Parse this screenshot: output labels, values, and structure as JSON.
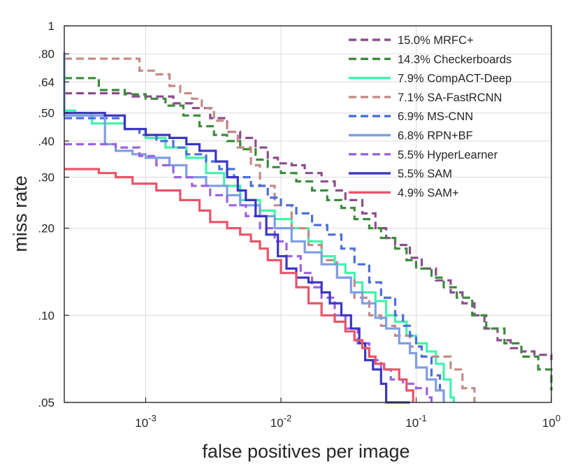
{
  "chart_data": {
    "type": "line",
    "title": "",
    "xlabel": "false positives per image",
    "ylabel": "miss rate",
    "xscale": "log",
    "yscale": "log",
    "xlim": [
      0.00025,
      1
    ],
    "ylim": [
      0.05,
      1
    ],
    "grid": true,
    "legend_position": "top-right",
    "y_ticks": [
      {
        "value": 0.05,
        "label": ".05"
      },
      {
        "value": 0.1,
        "label": ".10"
      },
      {
        "value": 0.2,
        "label": ".20"
      },
      {
        "value": 0.3,
        "label": ".30"
      },
      {
        "value": 0.4,
        "label": ".40"
      },
      {
        "value": 0.5,
        "label": ".50"
      },
      {
        "value": 0.64,
        "label": ".64"
      },
      {
        "value": 0.8,
        "label": ".80"
      },
      {
        "value": 1.0,
        "label": "1"
      }
    ],
    "x_ticks": [
      {
        "value": 0.001,
        "base": "10",
        "exp": "-3"
      },
      {
        "value": 0.01,
        "base": "10",
        "exp": "-2"
      },
      {
        "value": 0.1,
        "base": "10",
        "exp": "-1"
      },
      {
        "value": 1,
        "base": "10",
        "exp": "0"
      }
    ],
    "series": [
      {
        "name": "15.0% MRFC+",
        "color": "#8b4e8c",
        "dashed": true,
        "points": [
          [
            0.00025,
            0.585
          ],
          [
            0.0006,
            0.585
          ],
          [
            0.0008,
            0.57
          ],
          [
            0.0012,
            0.57
          ],
          [
            0.0016,
            0.54
          ],
          [
            0.0022,
            0.52
          ],
          [
            0.003,
            0.48
          ],
          [
            0.004,
            0.43
          ],
          [
            0.005,
            0.41
          ],
          [
            0.0065,
            0.38
          ],
          [
            0.008,
            0.35
          ],
          [
            0.0095,
            0.335
          ],
          [
            0.012,
            0.33
          ],
          [
            0.015,
            0.31
          ],
          [
            0.02,
            0.29
          ],
          [
            0.025,
            0.27
          ],
          [
            0.03,
            0.25
          ],
          [
            0.04,
            0.225
          ],
          [
            0.05,
            0.2
          ],
          [
            0.06,
            0.185
          ],
          [
            0.07,
            0.175
          ],
          [
            0.09,
            0.158
          ],
          [
            0.11,
            0.145
          ],
          [
            0.14,
            0.132
          ],
          [
            0.18,
            0.12
          ],
          [
            0.22,
            0.11
          ],
          [
            0.27,
            0.1
          ],
          [
            0.32,
            0.09
          ],
          [
            0.4,
            0.082
          ],
          [
            0.5,
            0.077
          ],
          [
            0.6,
            0.075
          ],
          [
            0.75,
            0.073
          ],
          [
            1.0,
            0.07
          ]
        ]
      },
      {
        "name": "14.3% Checkerboards",
        "color": "#3d8a3d",
        "dashed": true,
        "points": [
          [
            0.00025,
            0.66
          ],
          [
            0.00035,
            0.66
          ],
          [
            0.00045,
            0.6
          ],
          [
            0.0007,
            0.58
          ],
          [
            0.001,
            0.56
          ],
          [
            0.0014,
            0.53
          ],
          [
            0.0019,
            0.49
          ],
          [
            0.0025,
            0.45
          ],
          [
            0.0032,
            0.42
          ],
          [
            0.004,
            0.4
          ],
          [
            0.005,
            0.375
          ],
          [
            0.0065,
            0.345
          ],
          [
            0.008,
            0.325
          ],
          [
            0.01,
            0.31
          ],
          [
            0.013,
            0.29
          ],
          [
            0.017,
            0.27
          ],
          [
            0.022,
            0.25
          ],
          [
            0.028,
            0.235
          ],
          [
            0.035,
            0.215
          ],
          [
            0.045,
            0.2
          ],
          [
            0.055,
            0.185
          ],
          [
            0.07,
            0.17
          ],
          [
            0.085,
            0.155
          ],
          [
            0.1,
            0.145
          ],
          [
            0.13,
            0.135
          ],
          [
            0.16,
            0.125
          ],
          [
            0.2,
            0.115
          ],
          [
            0.26,
            0.1
          ],
          [
            0.33,
            0.09
          ],
          [
            0.45,
            0.08
          ],
          [
            0.6,
            0.072
          ],
          [
            0.8,
            0.065
          ],
          [
            1.0,
            0.055
          ]
        ]
      },
      {
        "name": "7.9% CompACT-Deep",
        "color": "#3ff5a9",
        "dashed": false,
        "points": [
          [
            0.00025,
            0.51
          ],
          [
            0.0003,
            0.5
          ],
          [
            0.0004,
            0.46
          ],
          [
            0.0007,
            0.44
          ],
          [
            0.001,
            0.41
          ],
          [
            0.0014,
            0.38
          ],
          [
            0.002,
            0.35
          ],
          [
            0.0028,
            0.31
          ],
          [
            0.0038,
            0.28
          ],
          [
            0.005,
            0.25
          ],
          [
            0.007,
            0.23
          ],
          [
            0.009,
            0.215
          ],
          [
            0.012,
            0.2
          ],
          [
            0.016,
            0.18
          ],
          [
            0.02,
            0.16
          ],
          [
            0.025,
            0.15
          ],
          [
            0.03,
            0.14
          ],
          [
            0.035,
            0.13
          ],
          [
            0.04,
            0.12
          ],
          [
            0.05,
            0.112
          ],
          [
            0.06,
            0.1
          ],
          [
            0.07,
            0.095
          ],
          [
            0.085,
            0.085
          ],
          [
            0.1,
            0.08
          ],
          [
            0.12,
            0.075
          ],
          [
            0.14,
            0.068
          ],
          [
            0.16,
            0.06
          ],
          [
            0.18,
            0.052
          ],
          [
            0.19,
            0.05
          ]
        ]
      },
      {
        "name": "7.1% SA-FastRCNN",
        "color": "#c48a88",
        "dashed": true,
        "points": [
          [
            0.00025,
            0.77
          ],
          [
            0.0008,
            0.77
          ],
          [
            0.0009,
            0.7
          ],
          [
            0.0012,
            0.68
          ],
          [
            0.0015,
            0.62
          ],
          [
            0.0018,
            0.585
          ],
          [
            0.0022,
            0.56
          ],
          [
            0.0026,
            0.52
          ],
          [
            0.0032,
            0.47
          ],
          [
            0.004,
            0.43
          ],
          [
            0.0048,
            0.38
          ],
          [
            0.006,
            0.33
          ],
          [
            0.007,
            0.28
          ],
          [
            0.009,
            0.24
          ],
          [
            0.012,
            0.2
          ],
          [
            0.016,
            0.175
          ],
          [
            0.02,
            0.155
          ],
          [
            0.026,
            0.135
          ],
          [
            0.035,
            0.115
          ],
          [
            0.045,
            0.1
          ],
          [
            0.055,
            0.092
          ],
          [
            0.07,
            0.085
          ],
          [
            0.09,
            0.078
          ],
          [
            0.11,
            0.072
          ],
          [
            0.14,
            0.072
          ],
          [
            0.18,
            0.065
          ],
          [
            0.22,
            0.056
          ],
          [
            0.27,
            0.05
          ]
        ]
      },
      {
        "name": "6.9% MS-CNN",
        "color": "#4a6fd8",
        "dashed": true,
        "points": [
          [
            0.00025,
            0.48
          ],
          [
            0.0005,
            0.48
          ],
          [
            0.0007,
            0.44
          ],
          [
            0.0009,
            0.42
          ],
          [
            0.0012,
            0.4
          ],
          [
            0.0016,
            0.38
          ],
          [
            0.002,
            0.36
          ],
          [
            0.0028,
            0.34
          ],
          [
            0.0035,
            0.32
          ],
          [
            0.0045,
            0.3
          ],
          [
            0.006,
            0.28
          ],
          [
            0.008,
            0.255
          ],
          [
            0.01,
            0.24
          ],
          [
            0.013,
            0.225
          ],
          [
            0.017,
            0.205
          ],
          [
            0.022,
            0.19
          ],
          [
            0.028,
            0.17
          ],
          [
            0.035,
            0.15
          ],
          [
            0.045,
            0.13
          ],
          [
            0.055,
            0.115
          ],
          [
            0.07,
            0.1
          ],
          [
            0.08,
            0.092
          ],
          [
            0.09,
            0.085
          ],
          [
            0.1,
            0.078
          ],
          [
            0.11,
            0.072
          ],
          [
            0.13,
            0.062
          ],
          [
            0.15,
            0.055
          ],
          [
            0.16,
            0.05
          ]
        ]
      },
      {
        "name": "6.8% RPN+BF",
        "color": "#7f9ee3",
        "dashed": false,
        "points": [
          [
            0.00025,
            0.81
          ],
          [
            0.00025,
            0.49
          ],
          [
            0.0005,
            0.46
          ],
          [
            0.0005,
            0.39
          ],
          [
            0.0006,
            0.37
          ],
          [
            0.0008,
            0.36
          ],
          [
            0.001,
            0.35
          ],
          [
            0.0015,
            0.33
          ],
          [
            0.002,
            0.3
          ],
          [
            0.0028,
            0.28
          ],
          [
            0.004,
            0.26
          ],
          [
            0.005,
            0.24
          ],
          [
            0.007,
            0.22
          ],
          [
            0.009,
            0.2
          ],
          [
            0.012,
            0.18
          ],
          [
            0.015,
            0.165
          ],
          [
            0.02,
            0.15
          ],
          [
            0.026,
            0.135
          ],
          [
            0.033,
            0.12
          ],
          [
            0.04,
            0.11
          ],
          [
            0.05,
            0.098
          ],
          [
            0.06,
            0.09
          ],
          [
            0.075,
            0.08
          ],
          [
            0.09,
            0.074
          ],
          [
            0.1,
            0.066
          ],
          [
            0.12,
            0.06
          ],
          [
            0.14,
            0.055
          ],
          [
            0.16,
            0.05
          ]
        ]
      },
      {
        "name": "5.5% HyperLearner",
        "color": "#9b63e0",
        "dashed": true,
        "points": [
          [
            0.00025,
            0.39
          ],
          [
            0.0006,
            0.38
          ],
          [
            0.0009,
            0.355
          ],
          [
            0.0012,
            0.33
          ],
          [
            0.0016,
            0.3
          ],
          [
            0.0022,
            0.28
          ],
          [
            0.003,
            0.26
          ],
          [
            0.004,
            0.24
          ],
          [
            0.0055,
            0.22
          ],
          [
            0.007,
            0.2
          ],
          [
            0.009,
            0.18
          ],
          [
            0.011,
            0.16
          ],
          [
            0.014,
            0.14
          ],
          [
            0.017,
            0.125
          ],
          [
            0.02,
            0.115
          ],
          [
            0.025,
            0.1
          ],
          [
            0.03,
            0.09
          ],
          [
            0.037,
            0.08
          ],
          [
            0.045,
            0.07
          ],
          [
            0.055,
            0.065
          ],
          [
            0.065,
            0.06
          ],
          [
            0.08,
            0.058
          ],
          [
            0.1,
            0.056
          ],
          [
            0.12,
            0.052
          ],
          [
            0.13,
            0.05
          ]
        ]
      },
      {
        "name": "5.5% SAM",
        "color": "#3b36c2",
        "dashed": false,
        "points": [
          [
            0.00025,
            0.5
          ],
          [
            0.0005,
            0.49
          ],
          [
            0.0007,
            0.44
          ],
          [
            0.001,
            0.42
          ],
          [
            0.0015,
            0.41
          ],
          [
            0.002,
            0.39
          ],
          [
            0.0025,
            0.37
          ],
          [
            0.0033,
            0.34
          ],
          [
            0.004,
            0.3
          ],
          [
            0.0048,
            0.27
          ],
          [
            0.0055,
            0.25
          ],
          [
            0.0065,
            0.22
          ],
          [
            0.0078,
            0.19
          ],
          [
            0.0095,
            0.16
          ],
          [
            0.011,
            0.145
          ],
          [
            0.013,
            0.135
          ],
          [
            0.016,
            0.13
          ],
          [
            0.02,
            0.12
          ],
          [
            0.023,
            0.11
          ],
          [
            0.028,
            0.1
          ],
          [
            0.033,
            0.09
          ],
          [
            0.038,
            0.08
          ],
          [
            0.042,
            0.07
          ],
          [
            0.048,
            0.065
          ],
          [
            0.055,
            0.058
          ],
          [
            0.06,
            0.05
          ],
          [
            0.09,
            0.05
          ]
        ]
      },
      {
        "name": "4.9% SAM+",
        "color": "#e85468",
        "dashed": false,
        "points": [
          [
            0.00025,
            0.32
          ],
          [
            0.0003,
            0.32
          ],
          [
            0.00045,
            0.31
          ],
          [
            0.0006,
            0.3
          ],
          [
            0.0008,
            0.285
          ],
          [
            0.0012,
            0.27
          ],
          [
            0.0018,
            0.25
          ],
          [
            0.0025,
            0.23
          ],
          [
            0.003,
            0.21
          ],
          [
            0.004,
            0.2
          ],
          [
            0.005,
            0.19
          ],
          [
            0.006,
            0.18
          ],
          [
            0.007,
            0.17
          ],
          [
            0.008,
            0.155
          ],
          [
            0.01,
            0.14
          ],
          [
            0.013,
            0.125
          ],
          [
            0.016,
            0.11
          ],
          [
            0.02,
            0.1
          ],
          [
            0.025,
            0.095
          ],
          [
            0.03,
            0.088
          ],
          [
            0.035,
            0.082
          ],
          [
            0.04,
            0.077
          ],
          [
            0.045,
            0.072
          ],
          [
            0.05,
            0.068
          ],
          [
            0.058,
            0.065
          ],
          [
            0.065,
            0.065
          ],
          [
            0.075,
            0.06
          ],
          [
            0.085,
            0.055
          ],
          [
            0.095,
            0.05
          ]
        ]
      }
    ]
  }
}
